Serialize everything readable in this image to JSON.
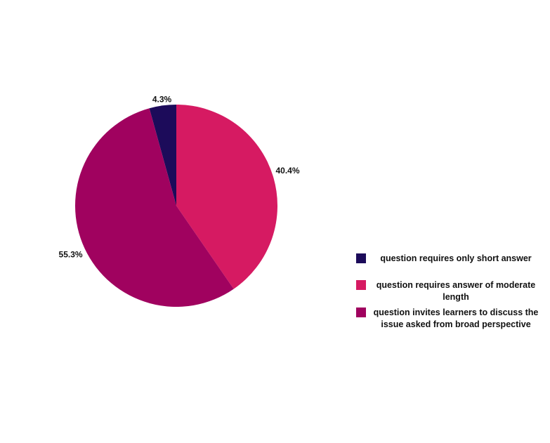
{
  "chart_data": {
    "type": "pie",
    "categories": [
      "question requires only short answer",
      "question requires answer of moderate length",
      "question invites learners to discuss the issue asked from broad perspective"
    ],
    "values": [
      4.3,
      40.4,
      55.3
    ],
    "value_labels": [
      "4.3%",
      "40.4%",
      "55.3%"
    ],
    "colors": [
      "#1c0b5a",
      "#d61a62",
      "#a0025f"
    ],
    "legend": "right"
  }
}
